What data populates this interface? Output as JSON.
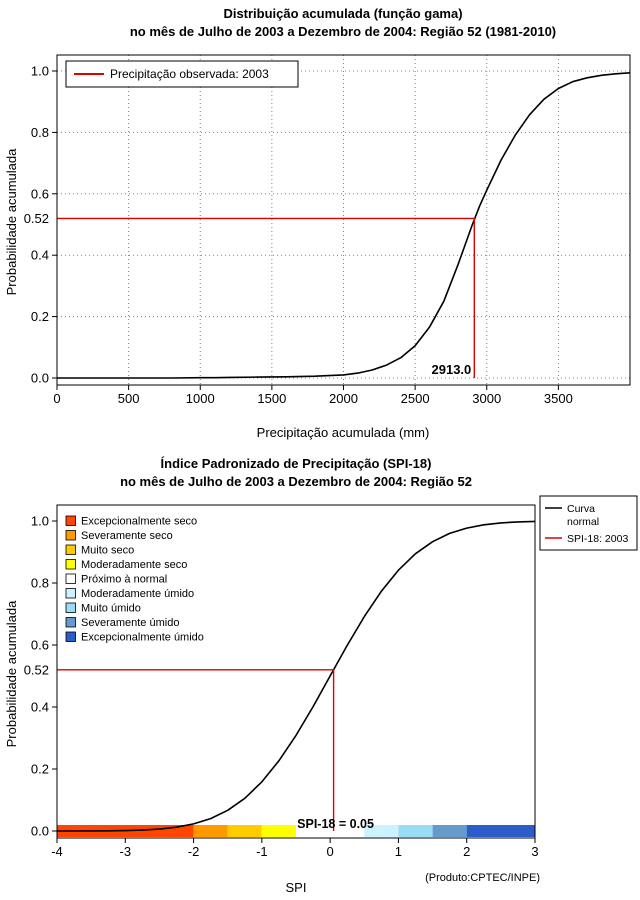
{
  "chart_data": [
    {
      "type": "line",
      "title": "Distribuição acumulada (função gama)",
      "subtitle": "no mês de Julho de 2003 a Dezembro de 2004: Região 52 (1981-2010)",
      "xlabel": "Precipitação acumulada (mm)",
      "ylabel": "Probabilidade acumulada",
      "xlim": [
        0,
        4000
      ],
      "ylim": [
        0,
        1
      ],
      "xticks": [
        "0",
        "500",
        "1000",
        "1500",
        "2000",
        "2500",
        "3000",
        "3500"
      ],
      "xtick_values": [
        0,
        500,
        1000,
        1500,
        2000,
        2500,
        3000,
        3500
      ],
      "yticks": [
        "0.0",
        "0.2",
        "0.4",
        "0.6",
        "0.8",
        "1.0"
      ],
      "ytick_values": [
        0,
        0.2,
        0.4,
        0.6,
        0.8,
        1
      ],
      "grid": true,
      "grid_color": "#808080",
      "legend": {
        "position": "top-left",
        "entries": [
          {
            "label": "Precipitação observada: 2003",
            "color": "#E00000",
            "type": "line"
          }
        ]
      },
      "series": [
        {
          "name": "Distribuição gama acumulada",
          "color": "#000000",
          "x": [
            0,
            200,
            400,
            600,
            800,
            1000,
            1100,
            1200,
            1400,
            1600,
            1800,
            2000,
            2100,
            2200,
            2300,
            2400,
            2500,
            2600,
            2700,
            2800,
            2900,
            2950,
            3000,
            3100,
            3200,
            3300,
            3400,
            3500,
            3600,
            3700,
            3800,
            3900,
            4000
          ],
          "y": [
            0,
            0,
            0,
            0,
            0,
            0.001,
            0.001,
            0.002,
            0.003,
            0.004,
            0.006,
            0.01,
            0.016,
            0.026,
            0.042,
            0.066,
            0.105,
            0.165,
            0.25,
            0.37,
            0.5,
            0.56,
            0.612,
            0.71,
            0.792,
            0.858,
            0.908,
            0.943,
            0.965,
            0.978,
            0.986,
            0.991,
            0.994
          ]
        }
      ],
      "marker": {
        "x": 2913.0,
        "y": 0.52,
        "x_label": "2913.0",
        "y_axis_label": "0.52",
        "color": "#E00000"
      }
    },
    {
      "type": "line",
      "title": "Índice Padronizado de Precipitação (SPI-18)",
      "subtitle": "no mês de Julho de 2003 a Dezembro de 2004: Região 52",
      "xlabel": "SPI",
      "ylabel": "Probabilidade acumulada",
      "xlim": [
        -4,
        3
      ],
      "ylim": [
        0,
        1
      ],
      "xticks": [
        "-4",
        "-3",
        "-2",
        "-1",
        "0",
        "1",
        "2",
        "3"
      ],
      "xtick_values": [
        -4,
        -3,
        -2,
        -1,
        0,
        1,
        2,
        3
      ],
      "yticks": [
        "0.0",
        "0.2",
        "0.4",
        "0.6",
        "0.8",
        "1.0"
      ],
      "ytick_values": [
        0,
        0.2,
        0.4,
        0.6,
        0.8,
        1
      ],
      "grid": false,
      "legend": {
        "position": "top-right",
        "entries": [
          {
            "label": "Curva normal",
            "label_lines": [
              "Curva",
              "normal"
            ],
            "color": "#000000",
            "type": "line"
          },
          {
            "label": "SPI-18: 2003",
            "label_lines": [
              "SPI-18: 2003"
            ],
            "color": "#E00000",
            "type": "line"
          }
        ]
      },
      "category_legend": [
        {
          "label": "Excepcionalmente seco",
          "color": "#FF4500"
        },
        {
          "label": "Severamente seco",
          "color": "#FF9900"
        },
        {
          "label": "Muito seco",
          "color": "#FFCC00"
        },
        {
          "label": "Moderadamente seco",
          "color": "#FFFF00"
        },
        {
          "label": "Próximo à normal",
          "color": "#FFFFFF"
        },
        {
          "label": "Moderadamente úmido",
          "color": "#CCF2FF"
        },
        {
          "label": "Muito úmido",
          "color": "#99DCF5"
        },
        {
          "label": "Severamente úmido",
          "color": "#6699CC"
        },
        {
          "label": "Excepcionalmente úmido",
          "color": "#2B5CC8"
        }
      ],
      "color_bar": {
        "boundaries": [
          -4,
          -2,
          -1.5,
          -1,
          -0.5,
          0.5,
          1,
          1.5,
          2,
          3
        ],
        "colors": [
          "#FF4500",
          "#FF9900",
          "#FFCC00",
          "#FFFF00",
          "#FFFFFF",
          "#CCF2FF",
          "#99DCF5",
          "#6699CC",
          "#2B5CC8"
        ]
      },
      "series": [
        {
          "name": "Curva normal",
          "color": "#000000",
          "x": [
            -4,
            -3.75,
            -3.5,
            -3.25,
            -3,
            -2.75,
            -2.5,
            -2.25,
            -2,
            -1.75,
            -1.5,
            -1.25,
            -1,
            -0.75,
            -0.5,
            -0.25,
            0,
            0.25,
            0.5,
            0.75,
            1,
            1.25,
            1.5,
            1.75,
            2,
            2.25,
            2.5,
            2.75,
            3
          ],
          "y": [
            0.0,
            0.0001,
            0.0002,
            0.0006,
            0.0013,
            0.003,
            0.0062,
            0.0122,
            0.0228,
            0.0401,
            0.0668,
            0.1056,
            0.1587,
            0.2266,
            0.3085,
            0.4013,
            0.5,
            0.5987,
            0.6915,
            0.7734,
            0.8413,
            0.8944,
            0.9332,
            0.9599,
            0.9772,
            0.9878,
            0.9938,
            0.997,
            0.9987
          ]
        }
      ],
      "marker": {
        "x": 0.05,
        "y": 0.52,
        "label": "SPI-18 = 0.05",
        "y_axis_label": "0.52",
        "color": "#E00000"
      },
      "credit": "(Produto:CPTEC/INPE)"
    }
  ]
}
